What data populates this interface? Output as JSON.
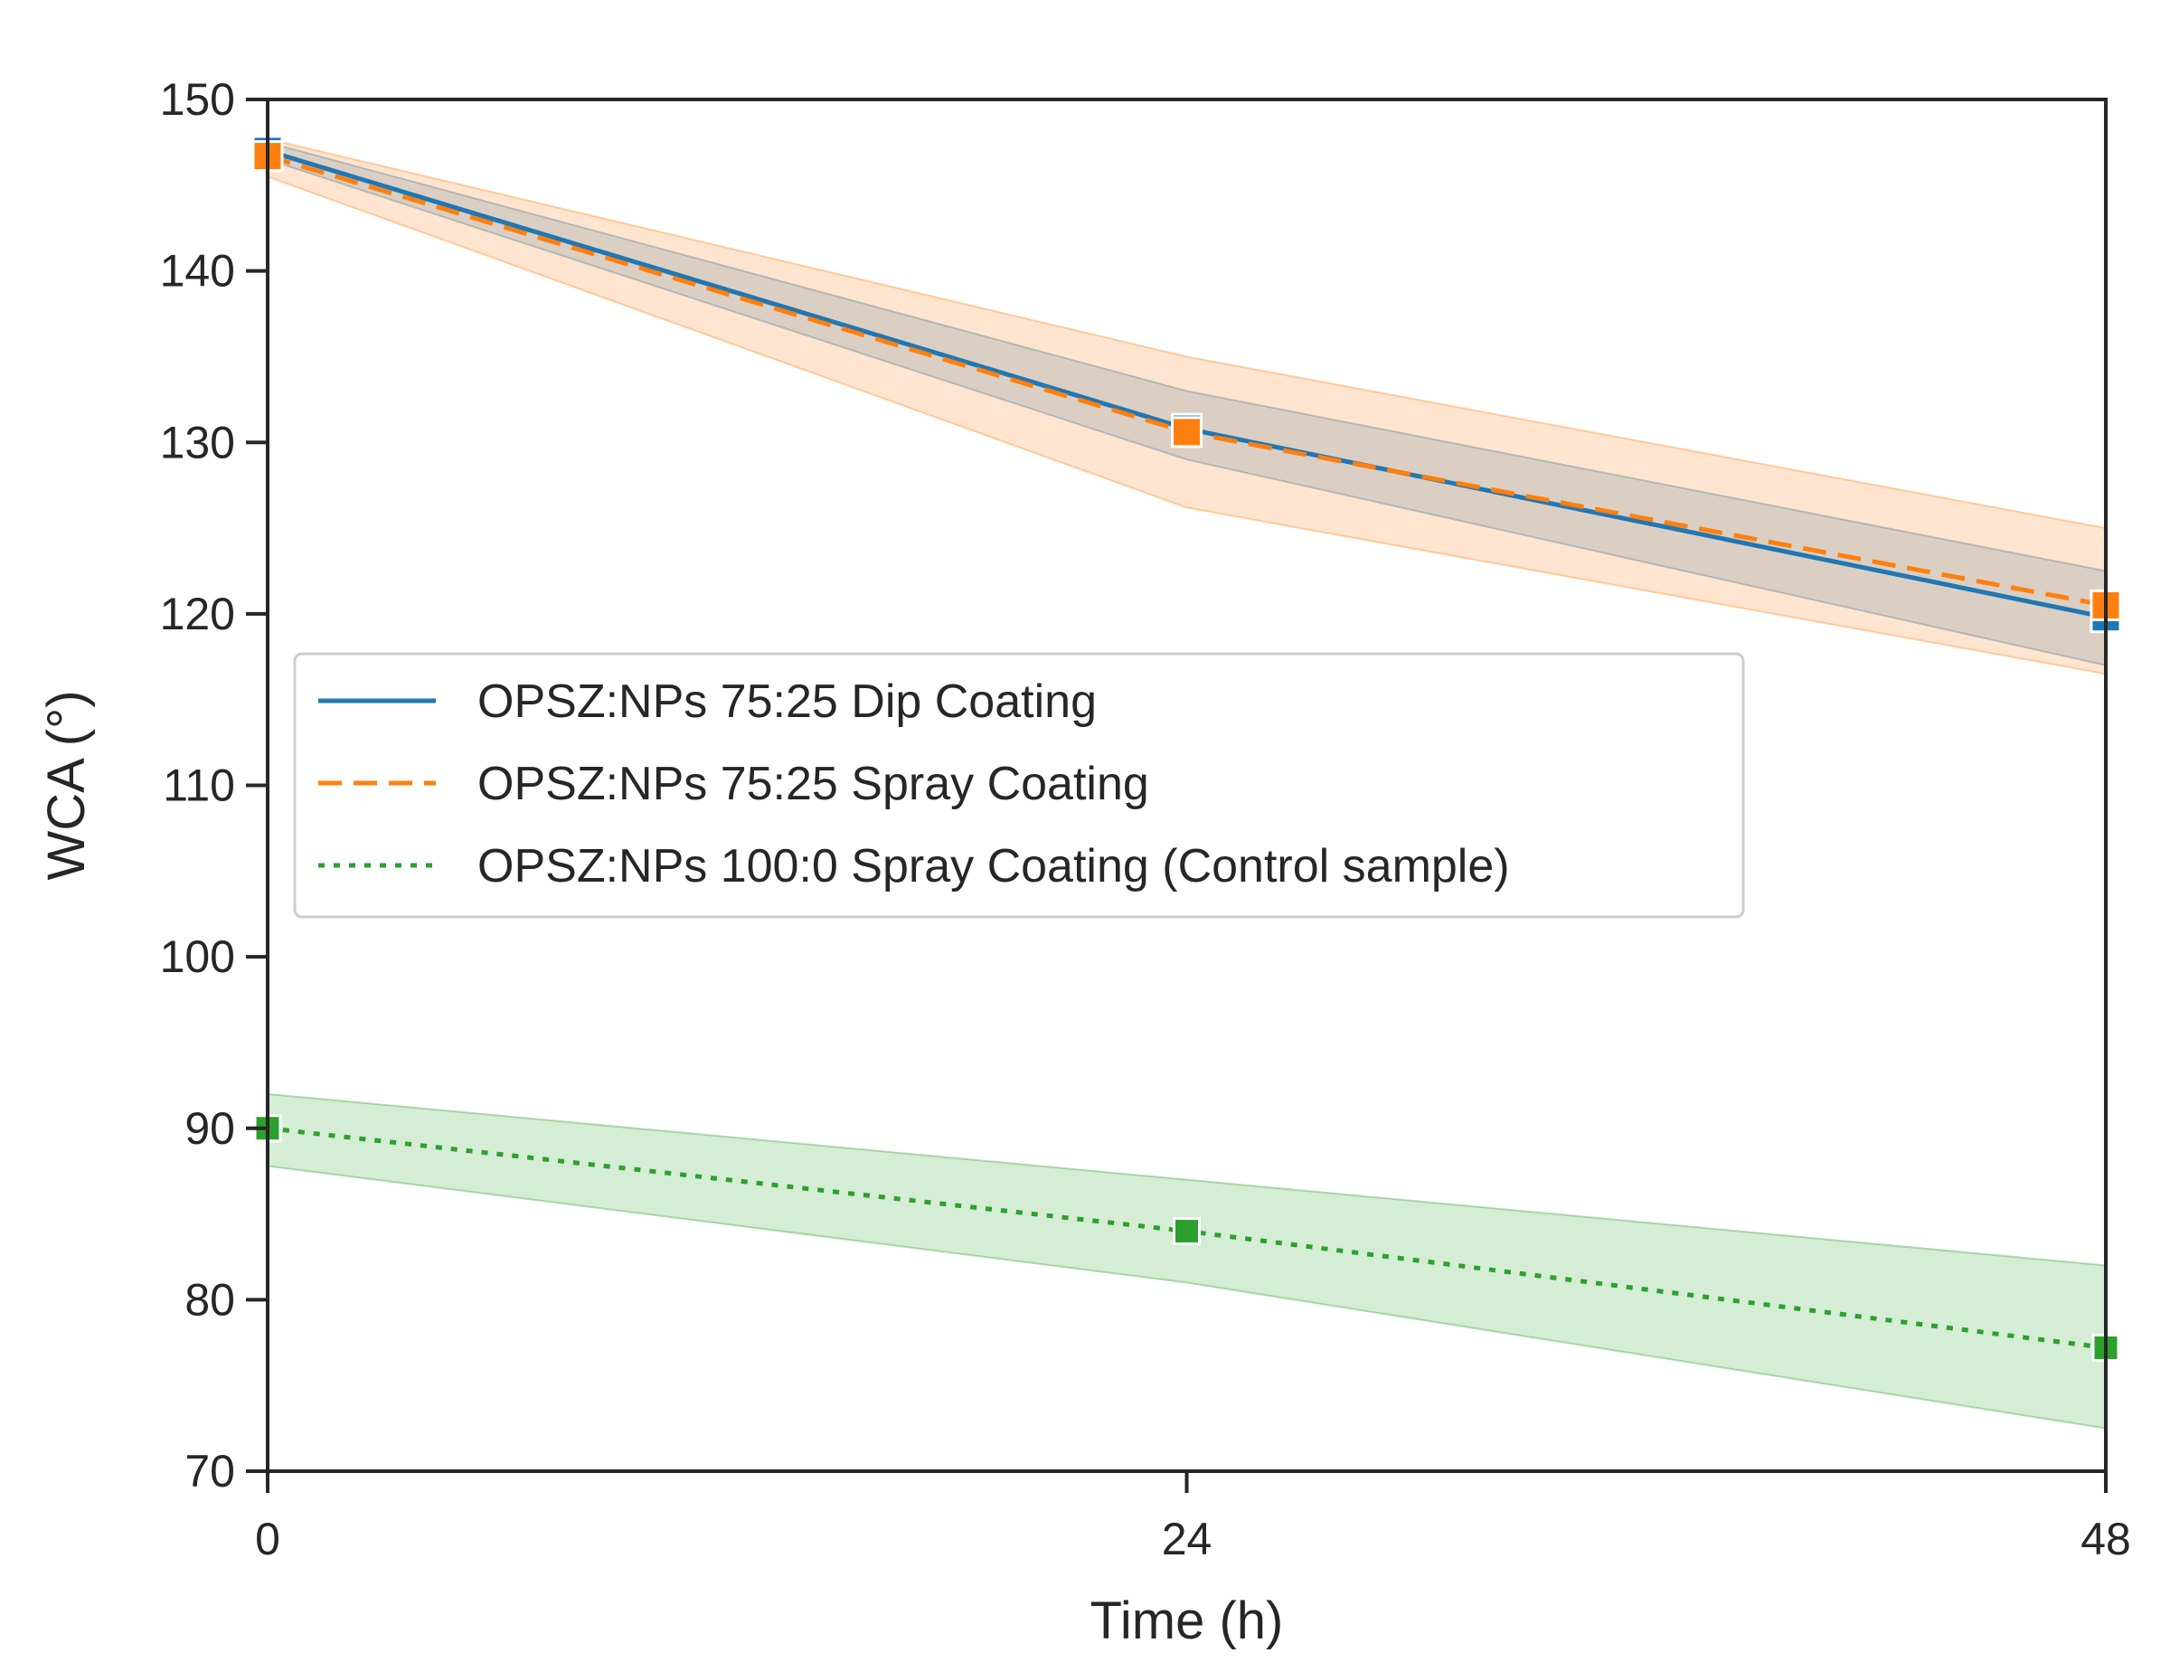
{
  "chart_data": {
    "type": "line",
    "title": "",
    "xlabel": "Time (h)",
    "ylabel": "WCA (°)",
    "x": [
      0,
      24,
      48
    ],
    "xticks": [
      "0",
      "24",
      "48"
    ],
    "xlim": [
      0,
      48
    ],
    "ylim": [
      70,
      150
    ],
    "yticks": [
      "70",
      "80",
      "90",
      "100",
      "110",
      "120",
      "130",
      "140",
      "150"
    ],
    "grid": false,
    "legend_location": "center-left",
    "series": [
      {
        "name": "OPSZ:NPs 75:25 Dip Coating",
        "values": [
          147.0,
          130.8,
          119.8
        ],
        "lower": [
          146.5,
          129.0,
          117.0
        ],
        "upper": [
          147.5,
          133.0,
          122.5
        ],
        "color": "#1f77b4",
        "style": "solid"
      },
      {
        "name": "OPSZ:NPs 75:25 Spray Coating",
        "values": [
          146.7,
          130.6,
          120.5
        ],
        "lower": [
          145.5,
          126.2,
          116.5
        ],
        "upper": [
          147.7,
          135.0,
          125.0
        ],
        "color": "#ff7f0e",
        "style": "dashed"
      },
      {
        "name": "OPSZ:NPs 100:0 Spray Coating (Control sample)",
        "values": [
          90.0,
          84.0,
          77.2
        ],
        "lower": [
          87.8,
          81.0,
          72.5
        ],
        "upper": [
          92.0,
          87.0,
          82.0
        ],
        "color": "#2ca02c",
        "style": "dotted"
      }
    ]
  }
}
